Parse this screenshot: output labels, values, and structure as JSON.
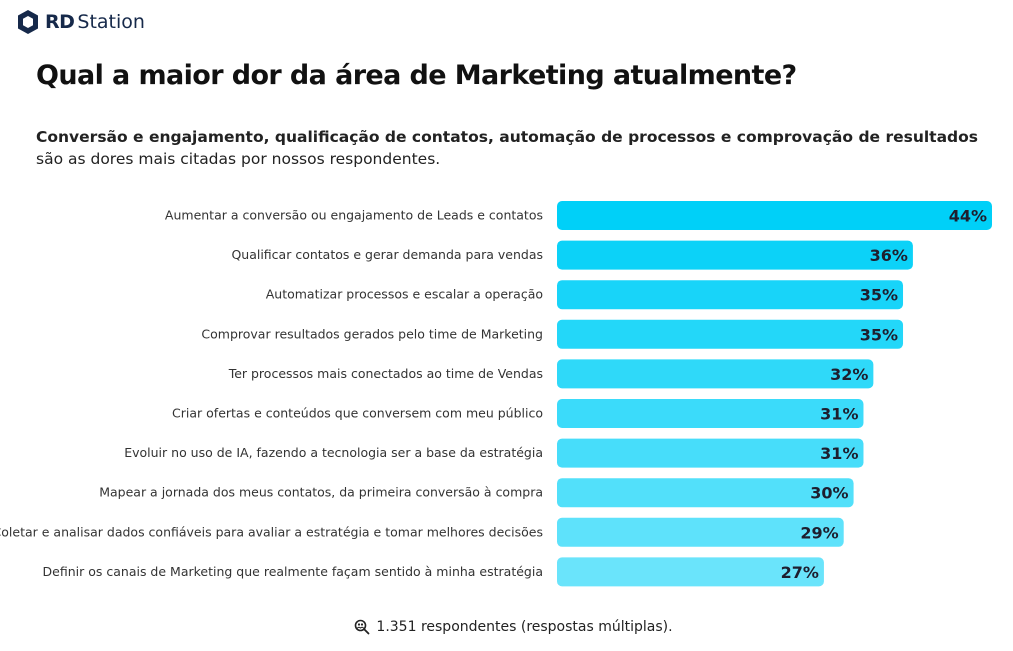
{
  "brand": {
    "name_bold": "RD",
    "name_regular": "Station",
    "logo_icon": "rd-hexagon-icon"
  },
  "title": "Qual a maior dor da área de Marketing atualmente?",
  "subtitle": {
    "bold": "Conversão e engajamento, qualificação de contatos, automação de processos e comprovação de resultados",
    "rest": " são as dores mais citadas por nossos respondentes."
  },
  "footer": {
    "text": "1.351 respondentes (respostas múltiplas).",
    "icon": "search-people-icon"
  },
  "colors": {
    "bar_dark": "#00d0f8",
    "bar_light": "#6ae4fb"
  },
  "chart_data": {
    "type": "bar",
    "orientation": "horizontal",
    "title": "Qual a maior dor da área de Marketing atualmente?",
    "categories": [
      "Aumentar a conversão ou engajamento de Leads e contatos",
      "Qualificar contatos e gerar demanda para vendas",
      "Automatizar processos e escalar a operação",
      "Comprovar resultados gerados pelo time de Marketing",
      "Ter processos mais conectados ao time de Vendas",
      "Criar ofertas e conteúdos que conversem com meu público",
      "Evoluir no uso de IA, fazendo a tecnologia ser a base da estratégia",
      "Mapear a jornada dos meus contatos, da primeira conversão à compra",
      "Coletar e analisar dados confiáveis para avaliar a estratégia e tomar melhores decisões",
      "Definir os canais de Marketing que realmente façam sentido à minha estratégia"
    ],
    "values": [
      44,
      36,
      35,
      35,
      32,
      31,
      31,
      30,
      29,
      27
    ],
    "value_labels": [
      "44%",
      "36%",
      "35%",
      "35%",
      "32%",
      "31%",
      "31%",
      "30%",
      "29%",
      "27%"
    ],
    "unit": "%",
    "xlim": [
      0,
      44
    ],
    "grid": false,
    "legend": "none"
  }
}
